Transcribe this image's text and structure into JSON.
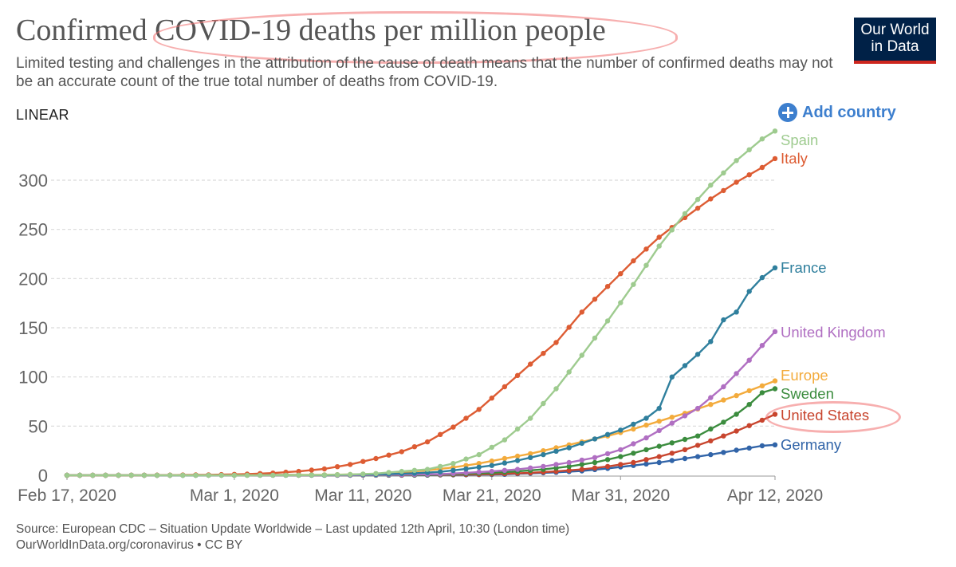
{
  "header": {
    "title": "Confirmed COVID-19 deaths per million people",
    "subtitle": "Limited testing and challenges in the attribution of the cause of death means that the number of confirmed deaths may not be an accurate count of the true total number of deaths from COVID-19.",
    "logo_line1": "Our World",
    "logo_line2": "in Data"
  },
  "controls": {
    "scale_label": "LINEAR",
    "add_country_label": "Add country"
  },
  "footer": {
    "source": "Source: European CDC – Situation Update Worldwide – Last updated 12th April, 10:30 (London time)",
    "url": "OurWorldInData.org/coronavirus • CC BY"
  },
  "colors": {
    "Spain": "#9ecb8f",
    "Italy": "#dd5c33",
    "France": "#2f7f9d",
    "United Kingdom": "#b06fc2",
    "Europe": "#f3ab3c",
    "Sweden": "#3b8c3e",
    "United States": "#c8452e",
    "Germany": "#3164a8",
    "highlight": "#f07070"
  },
  "chart_data": {
    "type": "line",
    "title": "Confirmed COVID-19 deaths per million people",
    "x_ticks": [
      "Feb 17, 2020",
      "Mar 1, 2020",
      "Mar 11, 2020",
      "Mar 21, 2020",
      "Mar 31, 2020",
      "Apr 12, 2020"
    ],
    "y_ticks": [
      0,
      50,
      100,
      150,
      200,
      250,
      300
    ],
    "ylim": [
      0,
      350
    ],
    "grid": "horizontal-dashed",
    "legend": "right-end-labels",
    "series": [
      {
        "name": "Spain",
        "values": [
          [
            "2020-02-17",
            0
          ],
          [
            "2020-03-01",
            0
          ],
          [
            "2020-03-05",
            0.1
          ],
          [
            "2020-03-08",
            0.3
          ],
          [
            "2020-03-10",
            0.8
          ],
          [
            "2020-03-12",
            1.8
          ],
          [
            "2020-03-14",
            4
          ],
          [
            "2020-03-16",
            6
          ],
          [
            "2020-03-18",
            12
          ],
          [
            "2020-03-20",
            21
          ],
          [
            "2020-03-22",
            36
          ],
          [
            "2020-03-24",
            58
          ],
          [
            "2020-03-26",
            88
          ],
          [
            "2020-03-28",
            122
          ],
          [
            "2020-03-30",
            157
          ],
          [
            "2020-04-01",
            194
          ],
          [
            "2020-04-03",
            233
          ],
          [
            "2020-04-05",
            266
          ],
          [
            "2020-04-07",
            295
          ],
          [
            "2020-04-09",
            320
          ],
          [
            "2020-04-11",
            342
          ],
          [
            "2020-04-12",
            350
          ]
        ]
      },
      {
        "name": "Italy",
        "values": [
          [
            "2020-02-17",
            0
          ],
          [
            "2020-02-22",
            0
          ],
          [
            "2020-02-25",
            0.2
          ],
          [
            "2020-02-28",
            0.5
          ],
          [
            "2020-03-02",
            1.2
          ],
          [
            "2020-03-04",
            2.3
          ],
          [
            "2020-03-06",
            4
          ],
          [
            "2020-03-08",
            6.5
          ],
          [
            "2020-03-10",
            11
          ],
          [
            "2020-03-12",
            17
          ],
          [
            "2020-03-14",
            24
          ],
          [
            "2020-03-16",
            34
          ],
          [
            "2020-03-18",
            49
          ],
          [
            "2020-03-20",
            67
          ],
          [
            "2020-03-22",
            90
          ],
          [
            "2020-03-24",
            113
          ],
          [
            "2020-03-26",
            135
          ],
          [
            "2020-03-28",
            166
          ],
          [
            "2020-03-30",
            192
          ],
          [
            "2020-04-01",
            218
          ],
          [
            "2020-04-03",
            242
          ],
          [
            "2020-04-05",
            262
          ],
          [
            "2020-04-07",
            281
          ],
          [
            "2020-04-09",
            298
          ],
          [
            "2020-04-11",
            313
          ],
          [
            "2020-04-12",
            322
          ]
        ]
      },
      {
        "name": "France",
        "values": [
          [
            "2020-02-17",
            0
          ],
          [
            "2020-03-08",
            0.2
          ],
          [
            "2020-03-12",
            1
          ],
          [
            "2020-03-15",
            2
          ],
          [
            "2020-03-17",
            3.5
          ],
          [
            "2020-03-19",
            6.5
          ],
          [
            "2020-03-21",
            10
          ],
          [
            "2020-03-23",
            15
          ],
          [
            "2020-03-25",
            21
          ],
          [
            "2020-03-27",
            28
          ],
          [
            "2020-03-29",
            37
          ],
          [
            "2020-03-31",
            46
          ],
          [
            "2020-04-02",
            58
          ],
          [
            "2020-04-03",
            68
          ],
          [
            "2020-04-04",
            100
          ],
          [
            "2020-04-06",
            123
          ],
          [
            "2020-04-07",
            136
          ],
          [
            "2020-04-08",
            158
          ],
          [
            "2020-04-09",
            166
          ],
          [
            "2020-04-10",
            187
          ],
          [
            "2020-04-11",
            201
          ],
          [
            "2020-04-12",
            211
          ]
        ]
      },
      {
        "name": "United Kingdom",
        "values": [
          [
            "2020-02-17",
            0
          ],
          [
            "2020-03-10",
            0.1
          ],
          [
            "2020-03-14",
            0.6
          ],
          [
            "2020-03-17",
            1.2
          ],
          [
            "2020-03-19",
            2.5
          ],
          [
            "2020-03-21",
            4
          ],
          [
            "2020-03-23",
            6
          ],
          [
            "2020-03-25",
            9
          ],
          [
            "2020-03-27",
            13
          ],
          [
            "2020-03-29",
            18
          ],
          [
            "2020-03-31",
            26
          ],
          [
            "2020-04-02",
            38
          ],
          [
            "2020-04-04",
            53
          ],
          [
            "2020-04-06",
            68
          ],
          [
            "2020-04-08",
            90
          ],
          [
            "2020-04-10",
            117
          ],
          [
            "2020-04-11",
            132
          ],
          [
            "2020-04-12",
            146
          ]
        ]
      },
      {
        "name": "Europe",
        "values": [
          [
            "2020-02-17",
            0
          ],
          [
            "2020-03-08",
            0.5
          ],
          [
            "2020-03-10",
            0.8
          ],
          [
            "2020-03-12",
            1.5
          ],
          [
            "2020-03-14",
            3
          ],
          [
            "2020-03-16",
            5
          ],
          [
            "2020-03-18",
            8
          ],
          [
            "2020-03-20",
            12
          ],
          [
            "2020-03-22",
            17
          ],
          [
            "2020-03-24",
            22
          ],
          [
            "2020-03-26",
            28
          ],
          [
            "2020-03-28",
            34
          ],
          [
            "2020-03-30",
            40
          ],
          [
            "2020-04-01",
            47
          ],
          [
            "2020-04-03",
            55
          ],
          [
            "2020-04-05",
            63
          ],
          [
            "2020-04-07",
            72
          ],
          [
            "2020-04-09",
            81
          ],
          [
            "2020-04-11",
            91
          ],
          [
            "2020-04-12",
            96
          ]
        ]
      },
      {
        "name": "Sweden",
        "values": [
          [
            "2020-02-17",
            0
          ],
          [
            "2020-03-12",
            0.1
          ],
          [
            "2020-03-16",
            0.5
          ],
          [
            "2020-03-19",
            1.5
          ],
          [
            "2020-03-21",
            2.5
          ],
          [
            "2020-03-23",
            4
          ],
          [
            "2020-03-25",
            6
          ],
          [
            "2020-03-27",
            9
          ],
          [
            "2020-03-29",
            13
          ],
          [
            "2020-03-31",
            19
          ],
          [
            "2020-04-02",
            26
          ],
          [
            "2020-04-04",
            33
          ],
          [
            "2020-04-06",
            40
          ],
          [
            "2020-04-08",
            54
          ],
          [
            "2020-04-09",
            62
          ],
          [
            "2020-04-10",
            72
          ],
          [
            "2020-04-11",
            84
          ],
          [
            "2020-04-12",
            88
          ]
        ]
      },
      {
        "name": "United States",
        "values": [
          [
            "2020-02-17",
            0
          ],
          [
            "2020-03-10",
            0.1
          ],
          [
            "2020-03-14",
            0.2
          ],
          [
            "2020-03-17",
            0.5
          ],
          [
            "2020-03-20",
            1
          ],
          [
            "2020-03-22",
            1.6
          ],
          [
            "2020-03-24",
            2.5
          ],
          [
            "2020-03-26",
            4
          ],
          [
            "2020-03-28",
            6
          ],
          [
            "2020-03-30",
            9
          ],
          [
            "2020-04-01",
            13
          ],
          [
            "2020-04-03",
            19
          ],
          [
            "2020-04-05",
            26
          ],
          [
            "2020-04-07",
            35
          ],
          [
            "2020-04-09",
            45
          ],
          [
            "2020-04-11",
            56
          ],
          [
            "2020-04-12",
            62
          ]
        ]
      },
      {
        "name": "Germany",
        "values": [
          [
            "2020-02-17",
            0
          ],
          [
            "2020-03-15",
            0.1
          ],
          [
            "2020-03-19",
            0.5
          ],
          [
            "2020-03-22",
            1
          ],
          [
            "2020-03-24",
            2
          ],
          [
            "2020-03-26",
            3
          ],
          [
            "2020-03-28",
            4.5
          ],
          [
            "2020-03-30",
            7
          ],
          [
            "2020-04-01",
            10
          ],
          [
            "2020-04-03",
            13
          ],
          [
            "2020-04-05",
            17
          ],
          [
            "2020-04-07",
            21
          ],
          [
            "2020-04-09",
            25.5
          ],
          [
            "2020-04-11",
            30
          ],
          [
            "2020-04-12",
            31
          ]
        ]
      }
    ]
  }
}
